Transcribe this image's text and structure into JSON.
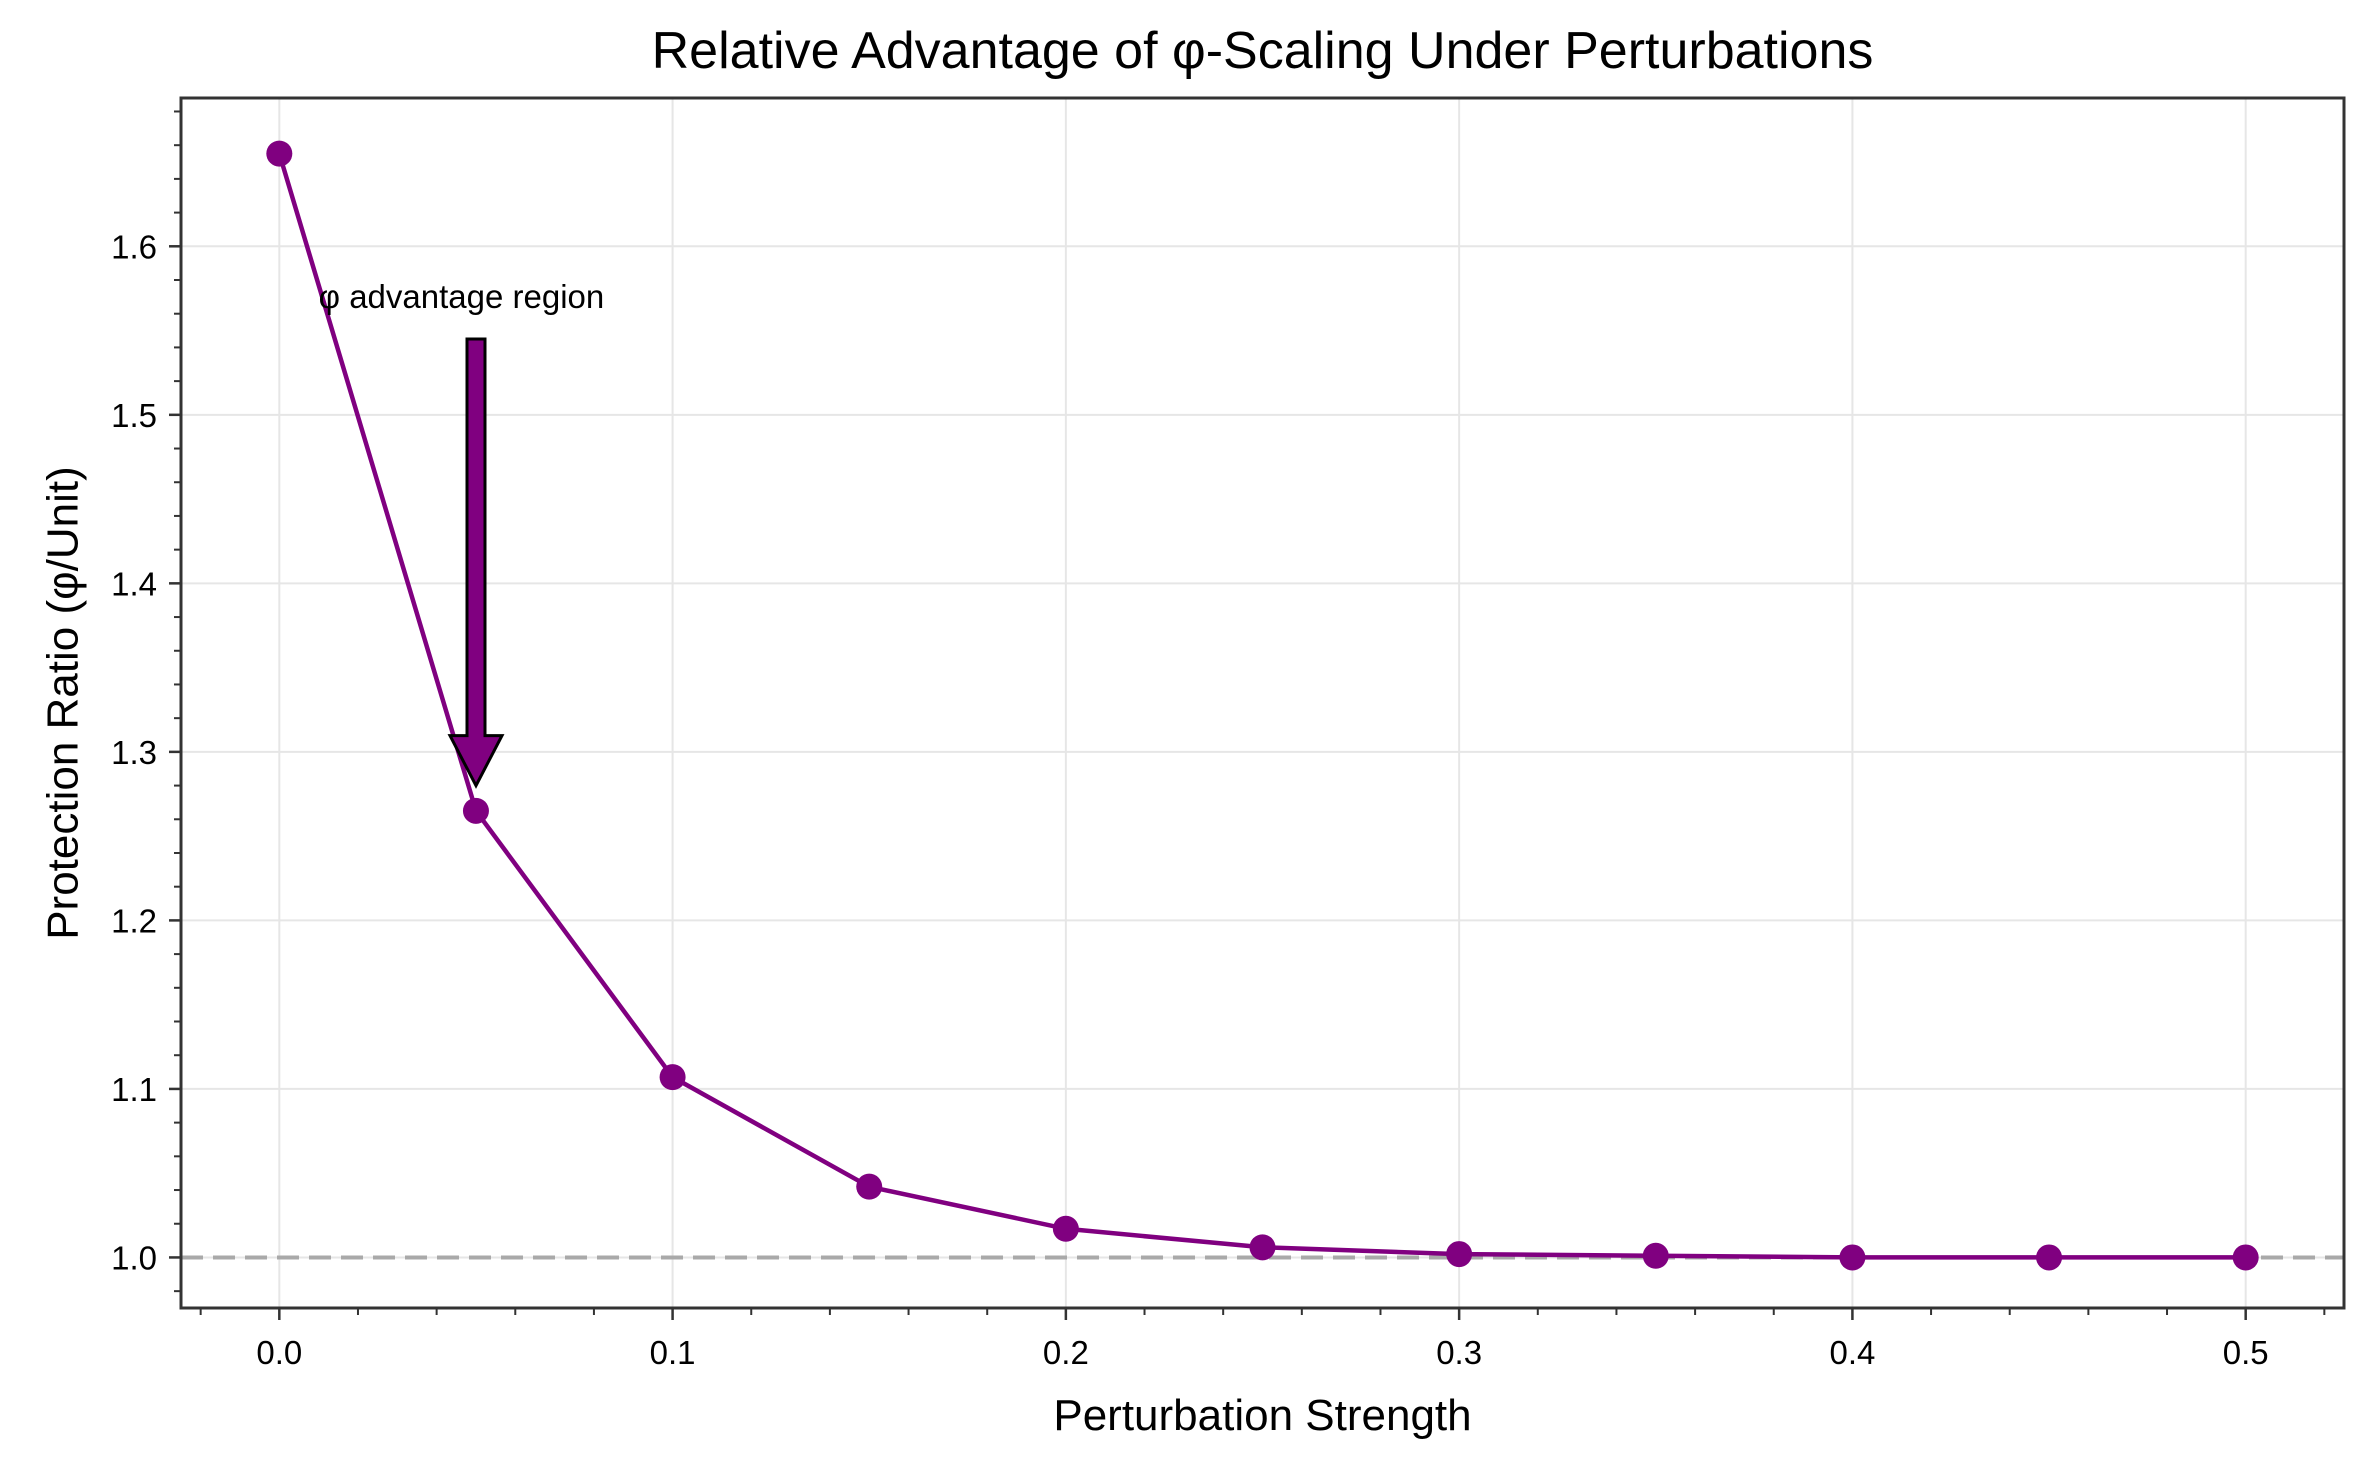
{
  "chart_data": {
    "type": "line",
    "title": "Relative Advantage of φ-Scaling Under Perturbations",
    "xlabel": "Perturbation Strength",
    "ylabel": "Protection Ratio (φ/Unit)",
    "x": [
      0.0,
      0.05,
      0.1,
      0.15,
      0.2,
      0.25,
      0.3,
      0.35,
      0.4,
      0.45,
      0.5
    ],
    "series": [
      {
        "values": [
          1.655,
          1.265,
          1.107,
          1.042,
          1.017,
          1.006,
          1.002,
          1.001,
          1.0,
          1.0,
          1.0
        ],
        "color": "#800080"
      }
    ],
    "xlim": [
      -0.025,
      0.525
    ],
    "ylim": [
      0.97,
      1.688
    ],
    "xticks": [
      0.0,
      0.1,
      0.2,
      0.3,
      0.4,
      0.5
    ],
    "xtick_labels": [
      "0.0",
      "0.1",
      "0.2",
      "0.3",
      "0.4",
      "0.5"
    ],
    "yticks": [
      1.0,
      1.1,
      1.2,
      1.3,
      1.4,
      1.5,
      1.6
    ],
    "ytick_labels": [
      "1.0",
      "1.1",
      "1.2",
      "1.3",
      "1.4",
      "1.5",
      "1.6"
    ],
    "reference_line": {
      "y": 1.0,
      "style": "dashed",
      "color": "#a9a9a9"
    },
    "annotation": {
      "text": "φ advantage region",
      "text_x": 0.01,
      "text_y": 1.57,
      "arrow_to_x": 0.05,
      "arrow_to_y": 1.28,
      "arrow_from_y": 1.545,
      "arrow_color": "#800080"
    },
    "grid": true,
    "legend": "none",
    "background": "#ffffff",
    "axes_color": "#333333",
    "grid_color": "#e6e6e6"
  }
}
